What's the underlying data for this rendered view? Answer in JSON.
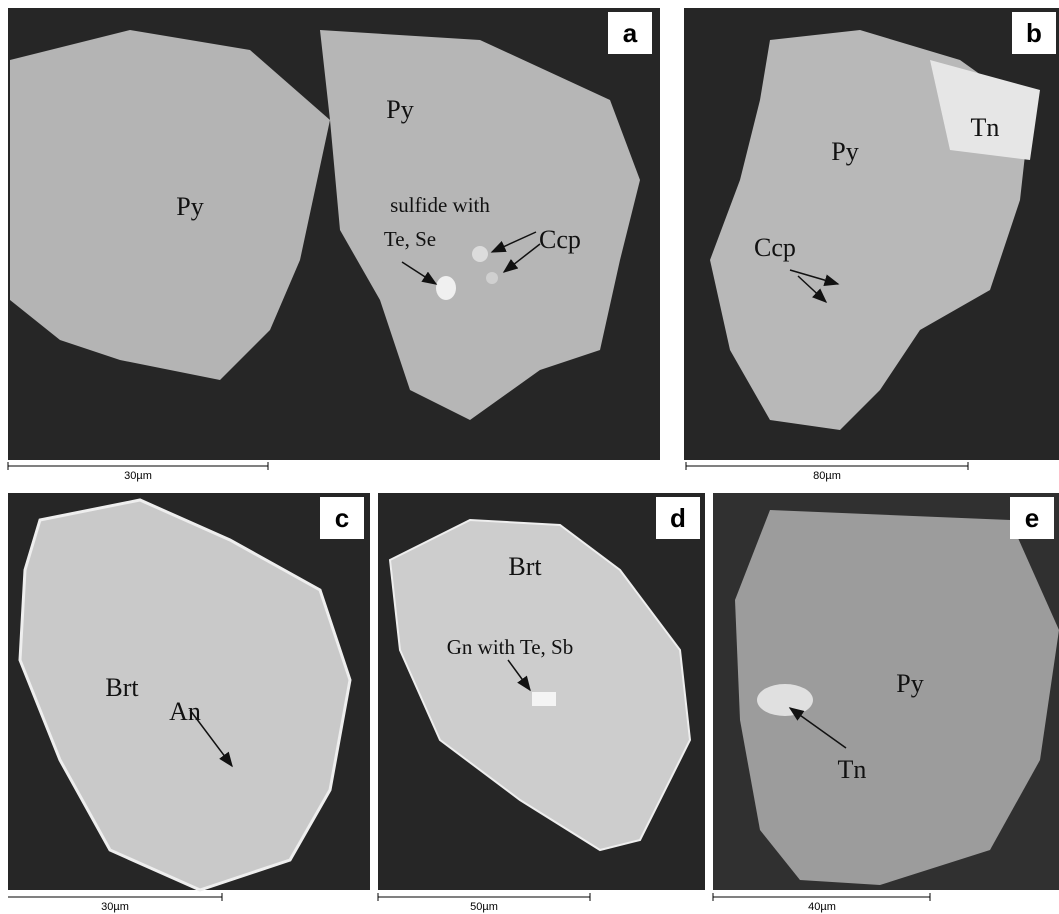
{
  "panels": [
    {
      "letter": "a",
      "labels": [
        "Py",
        "Py",
        "sulfide with",
        "Te, Se",
        "Ccp"
      ],
      "scale_bar": "30µm"
    },
    {
      "letter": "b",
      "labels": [
        "Py",
        "Tn",
        "Ccp"
      ],
      "scale_bar": "80µm"
    },
    {
      "letter": "c",
      "labels": [
        "Brt",
        "An"
      ],
      "scale_bar": "30µm"
    },
    {
      "letter": "d",
      "labels": [
        "Brt",
        "Gn with Te, Sb"
      ],
      "scale_bar": "50µm"
    },
    {
      "letter": "e",
      "labels": [
        "Py",
        "Tn"
      ],
      "scale_bar": "40µm"
    }
  ]
}
